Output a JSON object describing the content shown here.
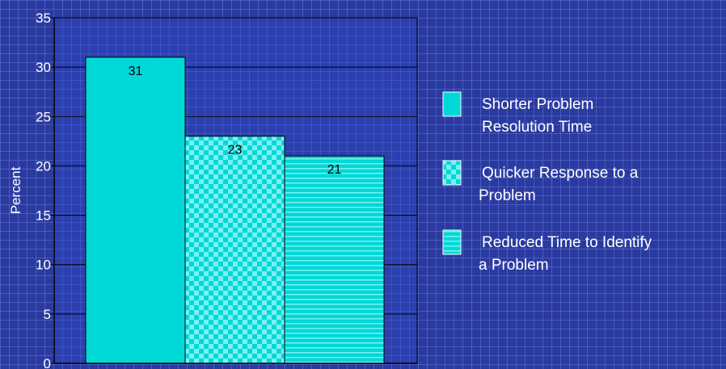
{
  "chart_data": {
    "type": "bar",
    "categories": [
      "Shorter Problem Resolution Time",
      "Quicker Response to a Problem",
      "Reduced Time to Identify a Problem"
    ],
    "values": [
      31,
      23,
      21
    ],
    "data_labels": [
      "31",
      "23",
      "21"
    ],
    "title": "",
    "xlabel": "",
    "ylabel": "Percent",
    "ylim": [
      0,
      35
    ],
    "yticks": [
      0,
      5,
      10,
      15,
      20,
      25,
      30,
      35
    ],
    "grid": true,
    "legend_position": "right",
    "legend": [
      {
        "label": "Shorter Problem Resolution Time",
        "lines": [
          "Shorter Problem",
          "Resolution Time"
        ],
        "pattern": "solid"
      },
      {
        "label": "Quicker Response to a Problem",
        "lines": [
          "Quicker Response to a",
          "Problem"
        ],
        "pattern": "checker"
      },
      {
        "label": "Reduced Time to Identify a Problem",
        "lines": [
          "Reduced Time to Identify",
          "a Problem"
        ],
        "pattern": "horizontal-stripes"
      }
    ],
    "colors": {
      "background": "#2b3a9e",
      "plot_area": "#2c3fae",
      "bar_fill": "#00d8d8",
      "bar_pattern_alt": "#7af0f0",
      "axis": "#000000",
      "text": "#ffffff"
    }
  }
}
